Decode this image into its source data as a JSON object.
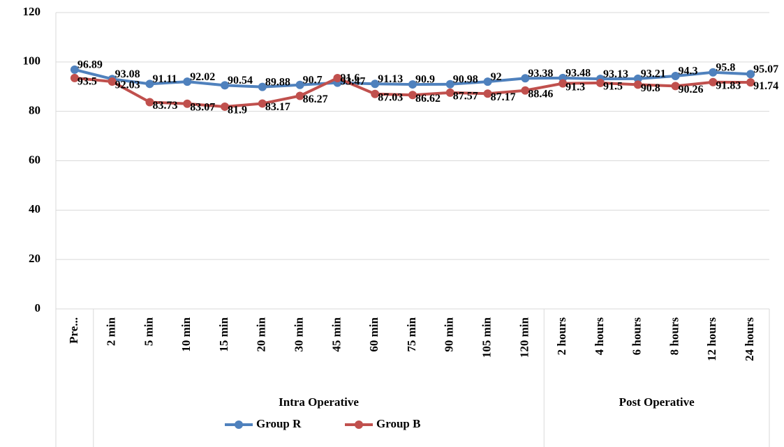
{
  "chart_data": {
    "type": "line",
    "categories": [
      "Pre...",
      "2 min",
      "5 min",
      "10 min",
      "15 min",
      "20 min",
      "30 min",
      "45 min",
      "60 min",
      "75 min",
      "90 min",
      "105 min",
      "120 min",
      "2 hours",
      "4 hours",
      "6 hours",
      "8 hours",
      "12 hours",
      "24 hours"
    ],
    "groups": [
      {
        "label": "Intra Operative",
        "categories": [
          "2 min",
          "120 min"
        ]
      },
      {
        "label": "Post Operative",
        "categories": [
          "2 hours",
          "24 hours"
        ]
      }
    ],
    "series": [
      {
        "name": "Group R",
        "color": "#4f81bd",
        "values": [
          96.89,
          93.08,
          91.11,
          92.02,
          90.54,
          89.88,
          90.7,
          91.6,
          91.13,
          90.9,
          90.98,
          92,
          93.38,
          93.48,
          93.13,
          93.21,
          94.3,
          95.8,
          95.07
        ]
      },
      {
        "name": "Group B",
        "color": "#c0504d",
        "values": [
          93.5,
          92.03,
          83.73,
          83.07,
          81.9,
          83.17,
          86.27,
          93.47,
          87.03,
          86.62,
          87.57,
          87.17,
          88.46,
          91.3,
          91.5,
          90.8,
          90.26,
          91.83,
          91.74
        ]
      }
    ],
    "ylim": [
      0,
      120
    ],
    "yticks": [
      0,
      20,
      40,
      60,
      80,
      100,
      120
    ],
    "grid": true,
    "legend": "bottom"
  }
}
